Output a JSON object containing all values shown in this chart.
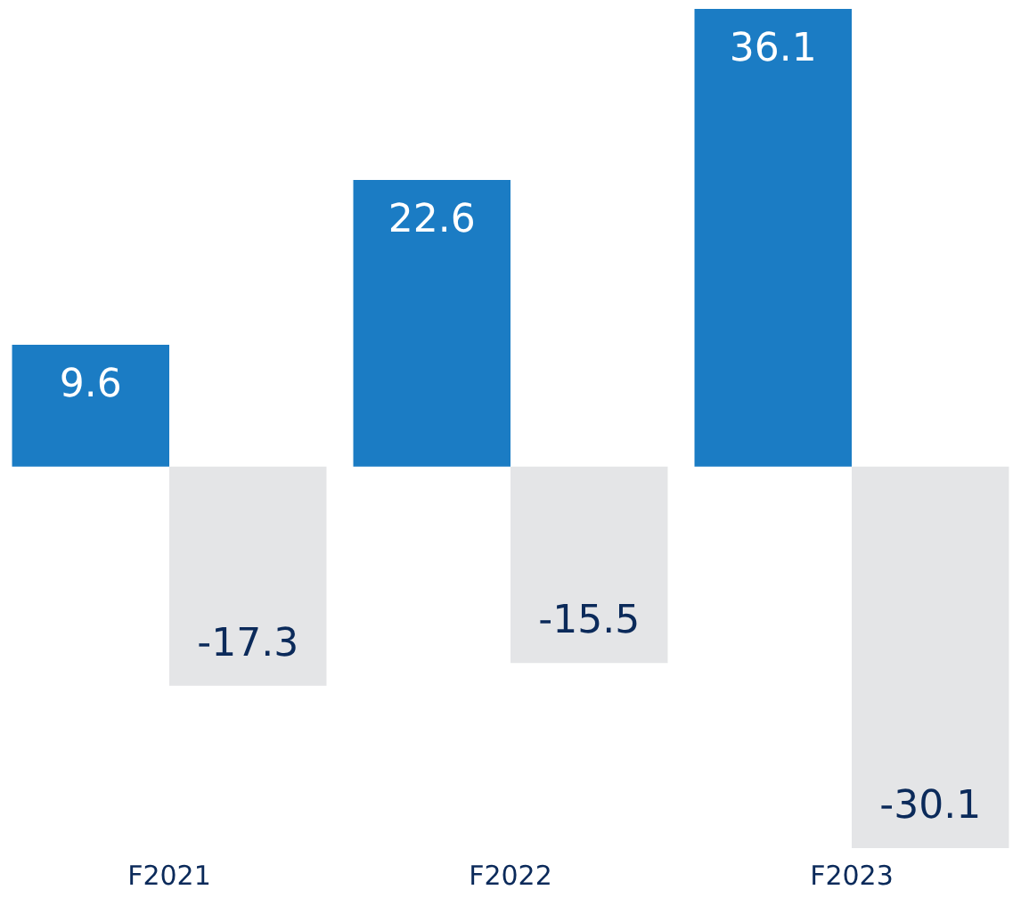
{
  "chart_data": {
    "type": "bar",
    "categories": [
      "F2021",
      "F2022",
      "F2023"
    ],
    "series": [
      {
        "color": "#1b7cc4",
        "values": [
          9.6,
          22.6,
          36.1
        ]
      },
      {
        "color": "#e4e5e7",
        "values": [
          -17.3,
          -15.5,
          -30.1
        ]
      }
    ],
    "data_labels": true,
    "legend": false,
    "grid": false
  }
}
